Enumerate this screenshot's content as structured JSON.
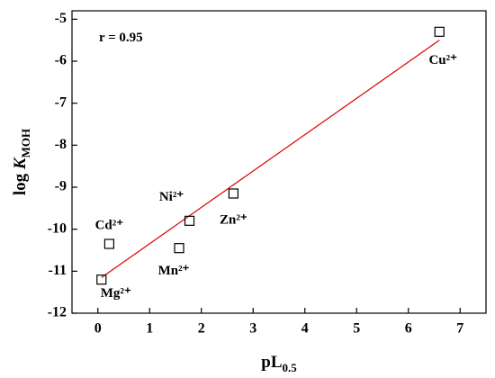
{
  "chart_data": {
    "type": "scatter",
    "annotation": "r = 0.95",
    "x_label": {
      "main": "pL",
      "sub": "0.5"
    },
    "y_label": {
      "main": "log ",
      "italic": "K",
      "sub": "MOH"
    },
    "x": [
      6.6,
      2.62,
      1.77,
      1.57,
      0.22,
      0.07
    ],
    "values": [
      -5.3,
      -9.15,
      -9.8,
      -10.45,
      -10.35,
      -11.2
    ],
    "point_labels": [
      "Cu²⁺",
      "Zn²⁺",
      "Ni²⁺",
      "Mn²⁺",
      "Cd²⁺",
      "Mg²⁺"
    ],
    "fit_line": {
      "x": [
        0.07,
        6.6
      ],
      "y": [
        -11.15,
        -5.5
      ],
      "color": "#e00000"
    },
    "xlim": [
      -0.5,
      7.5
    ],
    "ylim": [
      -12,
      -4.8
    ],
    "xticks": [
      0,
      1,
      2,
      3,
      4,
      5,
      6,
      7
    ],
    "yticks": [
      -12,
      -11,
      -10,
      -9,
      -8,
      -7,
      -6,
      -5
    ]
  }
}
